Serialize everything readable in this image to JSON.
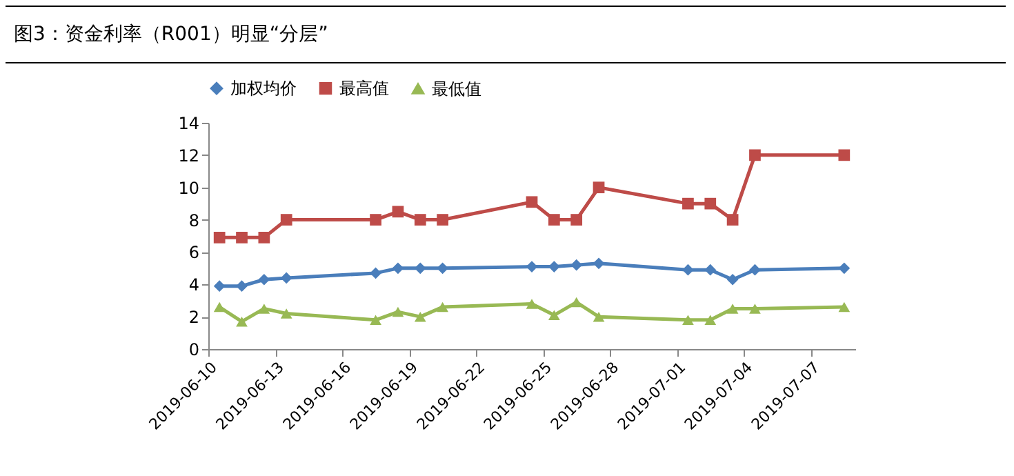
{
  "chart_data": {
    "type": "line",
    "title": "图3：资金利率（R001）明显“分层”",
    "x": [
      "2019-06-10T12:00",
      "2019-06-11T12:00",
      "2019-06-12T12:00",
      "2019-06-13T12:00",
      "2019-06-17T12:00",
      "2019-06-18T12:00",
      "2019-06-19T12:00",
      "2019-06-20T12:00",
      "2019-06-24T12:00",
      "2019-06-25T12:00",
      "2019-06-26T12:00",
      "2019-06-27T12:00",
      "2019-07-01T12:00",
      "2019-07-02T12:00",
      "2019-07-03T12:00",
      "2019-07-04T12:00",
      "2019-07-08T12:00"
    ],
    "series": [
      {
        "name": "加权均价",
        "color": "#4a7ebb",
        "marker": "diamond",
        "values": [
          3.9,
          3.9,
          4.3,
          4.4,
          4.7,
          5.0,
          5.0,
          5.0,
          5.1,
          5.1,
          5.2,
          5.3,
          4.9,
          4.9,
          4.3,
          4.9,
          5.0
        ]
      },
      {
        "name": "最高值",
        "color": "#be4b48",
        "marker": "square",
        "values": [
          6.9,
          6.9,
          6.9,
          8.0,
          8.0,
          8.5,
          8.0,
          8.0,
          9.1,
          8.0,
          8.0,
          10.0,
          9.0,
          9.0,
          8.0,
          12.0,
          12.0
        ]
      },
      {
        "name": "最低值",
        "color": "#98b954",
        "marker": "triangle",
        "values": [
          2.6,
          1.7,
          2.5,
          2.2,
          1.8,
          2.3,
          2.0,
          2.6,
          2.8,
          2.1,
          2.9,
          2.0,
          1.8,
          1.8,
          2.5,
          2.5,
          2.6
        ]
      }
    ],
    "xlim": [
      "2019-06-10",
      "2019-07-09"
    ],
    "xticks": [
      "2019-06-10",
      "2019-06-13",
      "2019-06-16",
      "2019-06-19",
      "2019-06-22",
      "2019-06-25",
      "2019-06-28",
      "2019-07-01",
      "2019-07-04",
      "2019-07-07"
    ],
    "ylim": [
      0,
      14
    ],
    "yticks": [
      0,
      2,
      4,
      6,
      8,
      10,
      12,
      14
    ],
    "grid": false,
    "legend": "top"
  }
}
